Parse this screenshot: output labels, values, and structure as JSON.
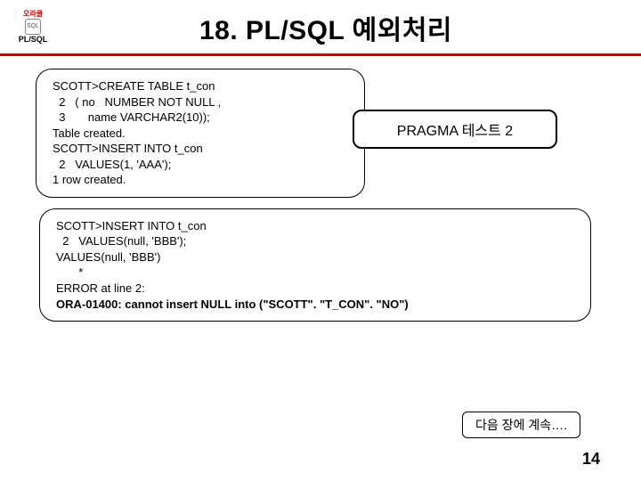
{
  "logo": {
    "line1": "오라클",
    "line2": "SQL",
    "line3": "PL/SQL"
  },
  "title": "18. PL/SQL 예외처리",
  "box1": {
    "l1": "SCOTT>CREATE TABLE t_con",
    "l2": "  2   ( no   NUMBER NOT NULL ,",
    "l3": "  3       name VARCHAR2(10));",
    "l4": "",
    "l5": "Table created.",
    "l6": "",
    "l7": "SCOTT>INSERT INTO t_con",
    "l8": "  2   VALUES(1, 'AAA');",
    "l9": "",
    "l10": "1 row created."
  },
  "pragma": "PRAGMA 테스트 2",
  "box2": {
    "l1": "SCOTT>INSERT INTO t_con",
    "l2": "  2   VALUES(null, 'BBB');",
    "l3": "VALUES(null, 'BBB')",
    "l4": "       *",
    "l5": "ERROR at line 2:",
    "l6": "ORA-01400: cannot insert NULL into (\"SCOTT\". \"T_CON\". \"NO\")"
  },
  "footer": "다음 장에 계속….",
  "page": "14",
  "colors": {
    "rule": "#c00000"
  }
}
